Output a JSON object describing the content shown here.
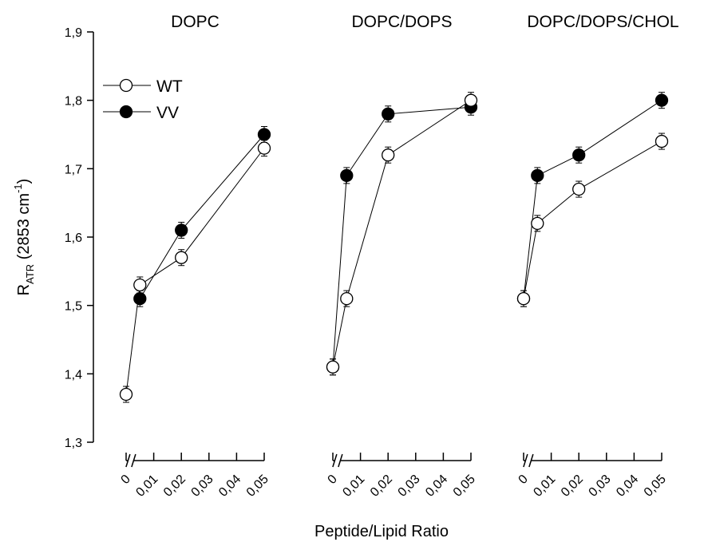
{
  "chart_data": {
    "type": "line",
    "ylabel": {
      "base": "R",
      "subscript": "ATR",
      "rest": " (2853 cm",
      "superscript": "-1",
      "close": ")"
    },
    "xlabel": "Peptide/Lipid Ratio",
    "ylim": [
      1.3,
      1.9
    ],
    "yticks": [
      "1,3",
      "1,4",
      "1,5",
      "1,6",
      "1,7",
      "1,8",
      "1,9"
    ],
    "ytick_values": [
      1.3,
      1.4,
      1.5,
      1.6,
      1.7,
      1.8,
      1.9
    ],
    "xticks": [
      "0",
      "0,01",
      "0,02",
      "0,03",
      "0,04",
      "0,05"
    ],
    "xtick_values": [
      0,
      0.01,
      0.02,
      0.03,
      0.04,
      0.05
    ],
    "x_axis_broken": true,
    "legend": {
      "position": "top-left",
      "entries": [
        {
          "label": "WT",
          "marker": "open-circle"
        },
        {
          "label": "VV",
          "marker": "filled-circle"
        }
      ]
    },
    "panels": [
      {
        "title": "DOPC",
        "series": [
          {
            "name": "WT",
            "x": [
              0,
              0.005,
              0.02,
              0.05
            ],
            "y": [
              1.37,
              1.53,
              1.57,
              1.73
            ]
          },
          {
            "name": "VV",
            "x": [
              0.005,
              0.02,
              0.05
            ],
            "y": [
              1.51,
              1.61,
              1.75
            ]
          }
        ]
      },
      {
        "title": "DOPC/DOPS",
        "series": [
          {
            "name": "WT",
            "x": [
              0,
              0.005,
              0.02,
              0.05
            ],
            "y": [
              1.41,
              1.51,
              1.72,
              1.8
            ]
          },
          {
            "name": "VV",
            "x": [
              0,
              0.005,
              0.02,
              0.05
            ],
            "y": [
              1.41,
              1.69,
              1.78,
              1.79
            ]
          }
        ]
      },
      {
        "title": "DOPC/DOPS/CHOL",
        "series": [
          {
            "name": "WT",
            "x": [
              0,
              0.005,
              0.02,
              0.05
            ],
            "y": [
              1.51,
              1.62,
              1.67,
              1.74
            ]
          },
          {
            "name": "VV",
            "x": [
              0,
              0.005,
              0.02,
              0.05
            ],
            "y": [
              1.51,
              1.69,
              1.72,
              1.8
            ]
          }
        ]
      }
    ]
  }
}
